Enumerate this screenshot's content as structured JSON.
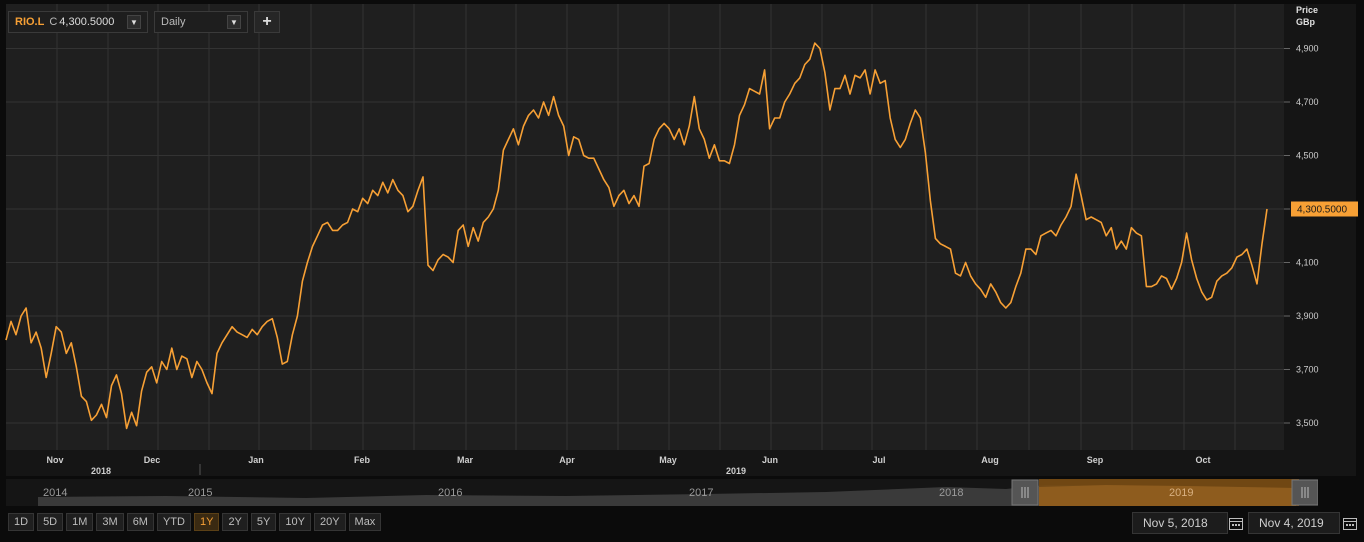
{
  "header": {
    "symbol": "RIO.L",
    "close_prefix": "C",
    "close_value": "4,300.5000",
    "period": "Daily",
    "add_label": "+"
  },
  "axis": {
    "unit_line1": "Price",
    "unit_line2": "GBp",
    "y_ticks": [
      "3,500",
      "3,700",
      "3,900",
      "4,100",
      "4,300",
      "4,500",
      "4,700",
      "4,900"
    ],
    "last_price_label": "4,300.5000",
    "month_labels": [
      "Nov",
      "Dec",
      "Jan",
      "Feb",
      "Mar",
      "Apr",
      "May",
      "Jun",
      "Jul",
      "Aug",
      "Sep",
      "Oct"
    ],
    "year_labels": [
      "2018",
      "2019"
    ]
  },
  "navigator": {
    "year_labels": [
      "2014",
      "2015",
      "2016",
      "2017",
      "2018",
      "2019"
    ]
  },
  "range_buttons": [
    "1D",
    "5D",
    "1M",
    "3M",
    "6M",
    "YTD",
    "1Y",
    "2Y",
    "5Y",
    "10Y",
    "20Y",
    "Max"
  ],
  "active_range": "1Y",
  "dates": {
    "start": "Nov 5, 2018",
    "end": "Nov 4, 2019"
  },
  "colors": {
    "line": "#f7a035",
    "background": "#1f1f1f",
    "grid": "#333333"
  },
  "chart_data": {
    "type": "line",
    "ylabel": "Price GBp",
    "ylim": [
      3420,
      4960
    ],
    "yticks": [
      3500,
      3700,
      3900,
      4100,
      4300,
      4500,
      4700,
      4900
    ],
    "grid": true,
    "series": [
      {
        "values": [
          3810,
          3880,
          3830,
          3900,
          3930,
          3800,
          3840,
          3780,
          3670,
          3760,
          3860,
          3840,
          3760,
          3800,
          3710,
          3600,
          3580,
          3510,
          3530,
          3570,
          3520,
          3640,
          3680,
          3610,
          3480,
          3540,
          3490,
          3620,
          3690,
          3710,
          3650,
          3730,
          3700,
          3780,
          3700,
          3750,
          3740,
          3670,
          3730,
          3700,
          3650,
          3610,
          3760,
          3800,
          3830,
          3860,
          3840,
          3830,
          3820,
          3850,
          3830,
          3860,
          3880,
          3890,
          3820,
          3720,
          3730,
          3830,
          3900,
          4030,
          4100,
          4160,
          4200,
          4240,
          4250,
          4220,
          4220,
          4240,
          4250,
          4300,
          4290,
          4340,
          4320,
          4370,
          4350,
          4400,
          4360,
          4410,
          4370,
          4350,
          4290,
          4310,
          4370,
          4420,
          4090,
          4070,
          4110,
          4130,
          4120,
          4100,
          4220,
          4240,
          4160,
          4230,
          4180,
          4250,
          4270,
          4300,
          4370,
          4520,
          4560,
          4600,
          4540,
          4610,
          4650,
          4670,
          4640,
          4700,
          4650,
          4720,
          4650,
          4610,
          4500,
          4570,
          4560,
          4500,
          4490,
          4490,
          4450,
          4410,
          4380,
          4310,
          4350,
          4370,
          4320,
          4350,
          4310,
          4460,
          4470,
          4560,
          4600,
          4620,
          4600,
          4560,
          4600,
          4540,
          4610,
          4720,
          4600,
          4560,
          4490,
          4540,
          4480,
          4480,
          4470,
          4540,
          4650,
          4690,
          4750,
          4740,
          4730,
          4820,
          4600,
          4640,
          4640,
          4700,
          4730,
          4770,
          4790,
          4840,
          4860,
          4920,
          4900,
          4810,
          4670,
          4750,
          4750,
          4800,
          4730,
          4800,
          4790,
          4820,
          4730,
          4820,
          4770,
          4780,
          4640,
          4560,
          4530,
          4560,
          4620,
          4670,
          4640,
          4510,
          4330,
          4190,
          4170,
          4160,
          4150,
          4060,
          4050,
          4100,
          4050,
          4020,
          4000,
          3970,
          4020,
          3990,
          3950,
          3930,
          3950,
          4010,
          4060,
          4150,
          4150,
          4130,
          4200,
          4210,
          4220,
          4200,
          4240,
          4270,
          4310,
          4430,
          4350,
          4260,
          4270,
          4260,
          4250,
          4200,
          4230,
          4150,
          4180,
          4150,
          4230,
          4210,
          4200,
          4010,
          4010,
          4020,
          4050,
          4040,
          4000,
          4040,
          4100,
          4210,
          4110,
          4040,
          3990,
          3960,
          3970,
          4030,
          4050,
          4060,
          4080,
          4120,
          4130,
          4150,
          4090,
          4020,
          4170,
          4300
        ]
      }
    ]
  }
}
